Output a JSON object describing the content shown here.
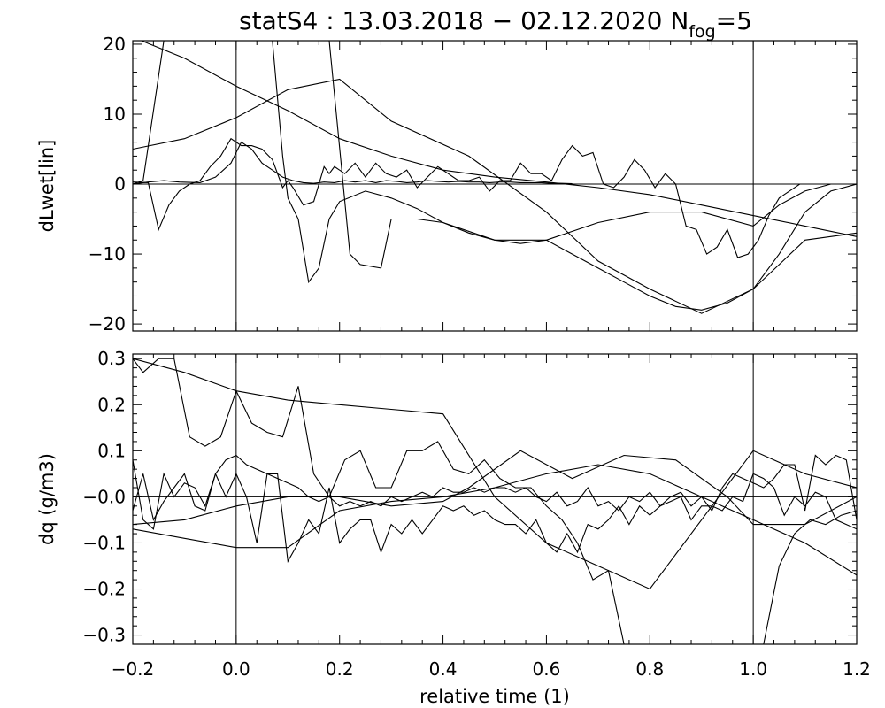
{
  "title": {
    "main": "statS4 : 13.03.2018 − 02.12.2020 N",
    "sub": "fog",
    "tail": "=5"
  },
  "chart_data": [
    {
      "type": "line",
      "ylabel": "dLwet[lin]",
      "xlim": [
        -0.2,
        1.2
      ],
      "ylim": [
        -21,
        20.5
      ],
      "xticks": [
        -0.2,
        0.0,
        0.2,
        0.4,
        0.6,
        0.8,
        1.0,
        1.2
      ],
      "yticks": [
        -20,
        -10,
        0,
        10,
        20
      ],
      "ytick_labels": [
        "−20",
        "−10",
        "0",
        "10",
        "20"
      ],
      "hline": 0,
      "vlines": [
        0.0,
        1.0
      ],
      "series": [
        {
          "x": [
            -0.2,
            -0.1,
            0.0,
            0.1,
            0.2,
            0.3,
            0.45,
            0.6,
            0.7,
            0.8,
            0.9,
            1.0,
            1.1,
            1.2
          ],
          "y": [
            5,
            6.5,
            9.5,
            13.5,
            15,
            9,
            4,
            -4,
            -11,
            -15,
            -18.5,
            -15,
            -8,
            -7
          ]
        },
        {
          "x": [
            -0.2,
            -0.1,
            0.0,
            0.1,
            0.2,
            0.3,
            0.4,
            0.5,
            0.6,
            0.7,
            0.8,
            0.9,
            1.0,
            1.1,
            1.2
          ],
          "y": [
            21,
            18,
            14,
            10.5,
            6.5,
            4,
            2,
            1,
            0.3,
            -0.5,
            -1.5,
            -3,
            -4.5,
            -6,
            -7.5
          ]
        },
        {
          "x": [
            -0.2,
            -0.17,
            -0.15,
            -0.13,
            -0.11,
            -0.09,
            -0.07,
            -0.05,
            -0.03,
            -0.01,
            0.01,
            0.03,
            0.05,
            0.07,
            0.09,
            0.1,
            0.11,
            0.13,
            0.15,
            0.17,
            0.18,
            0.19,
            0.21,
            0.23,
            0.25,
            0.27,
            0.29,
            0.31,
            0.33,
            0.35,
            0.37,
            0.39,
            0.41,
            0.43,
            0.45,
            0.47,
            0.49,
            0.51,
            0.53,
            0.55,
            0.57,
            0.59,
            0.61,
            0.63,
            0.65,
            0.67,
            0.69,
            0.71,
            0.73,
            0.75,
            0.77,
            0.79,
            0.81,
            0.83,
            0.85,
            0.87,
            0.89,
            0.91,
            0.93,
            0.95,
            0.97,
            0.99,
            1.01,
            1.03,
            1.05,
            1.07,
            1.09,
            1.11,
            1.13,
            1.15,
            1.2
          ],
          "y": [
            0.3,
            0.2,
            -6.5,
            -3,
            -1,
            0,
            0.5,
            2.5,
            4,
            6.5,
            5.5,
            5.5,
            5,
            3.5,
            -0.5,
            0.5,
            -0.5,
            -3,
            -2.5,
            2.5,
            1.5,
            2.5,
            1.5,
            3,
            1,
            3,
            1.5,
            1,
            2,
            -0.5,
            1,
            2.5,
            1.5,
            0.5,
            0.5,
            1,
            -1,
            0.5,
            0.5,
            3,
            1.5,
            1.5,
            0.5,
            3.5,
            5.5,
            4,
            4.5,
            0,
            -0.5,
            1,
            3.5,
            2,
            -0.5,
            1.5,
            0,
            -6,
            -6.5,
            -10,
            -9,
            -6.5,
            -10.5,
            -10,
            -8,
            -4.5,
            -2,
            -1,
            0,
            0,
            0,
            0,
            0
          ]
        },
        {
          "x": [
            -0.2,
            -0.17,
            -0.14,
            -0.11,
            -0.07,
            -0.04,
            -0.01,
            0.01,
            0.03,
            0.05,
            0.07,
            0.09,
            0.11,
            0.13,
            0.15,
            0.17,
            0.19,
            0.21,
            0.23,
            0.25,
            0.27,
            0.29,
            0.31,
            0.33,
            0.35,
            0.37,
            0.39,
            0.41,
            0.43,
            0.45,
            0.47,
            0.49,
            0.51,
            0.53,
            0.55,
            0.57,
            0.59,
            0.61,
            0.63,
            0.65
          ],
          "y": [
            0,
            0.3,
            0.5,
            0.3,
            0.2,
            1,
            3,
            6,
            5,
            3,
            2,
            1,
            0.5,
            0.2,
            0.1,
            0.3,
            0.2,
            0.5,
            0.3,
            0.5,
            0.2,
            0.5,
            0.4,
            0.2,
            0.3,
            0.5,
            0.4,
            0.3,
            0.4,
            0.3,
            0.3,
            0.2,
            0.3,
            0.3,
            0.2,
            0.2,
            0.2,
            0.1,
            0.1,
            0.05
          ]
        },
        {
          "x": [
            -0.2,
            -0.18,
            -0.14,
            -0.12,
            -0.1,
            0.07,
            0.09,
            0.12,
            0.15,
            0.18,
            0.22,
            0.24,
            0.28,
            0.3,
            0.35,
            0.4,
            0.5,
            0.6,
            0.7,
            0.8,
            0.9,
            1.0,
            1.05,
            1.1,
            1.15,
            1.2
          ],
          "y": [
            0,
            0.5,
            20.5,
            20.5,
            20.5,
            20.5,
            20.5,
            20.5,
            20.5,
            20.5,
            -10,
            -11.5,
            -12,
            -5,
            -5,
            -5.5,
            -8,
            -8,
            -5.5,
            -4,
            -4,
            -6,
            -3,
            -1,
            0,
            0
          ]
        },
        {
          "x": [
            0.07,
            0.09,
            0.1,
            0.12,
            0.14,
            0.16,
            0.18,
            0.2,
            0.25,
            0.3,
            0.35,
            0.4,
            0.45,
            0.5,
            0.55,
            0.6,
            0.65,
            0.7,
            0.75,
            0.8,
            0.85,
            0.9,
            0.95,
            1.0,
            1.05,
            1.1,
            1.15,
            1.2
          ],
          "y": [
            20.5,
            4,
            -2,
            -5,
            -14,
            -12,
            -5,
            -2.5,
            -1,
            -2,
            -3.5,
            -5.5,
            -7,
            -8,
            -8.5,
            -8,
            -10,
            -12,
            -14,
            -16,
            -17.5,
            -18,
            -17,
            -15,
            -10,
            -4,
            -1,
            0
          ]
        }
      ]
    },
    {
      "type": "line",
      "xlabel": "relative time (1)",
      "ylabel": "dq (g/m3)",
      "xlim": [
        -0.2,
        1.2
      ],
      "ylim": [
        -0.32,
        0.31
      ],
      "xticks": [
        -0.2,
        0.0,
        0.2,
        0.4,
        0.6,
        0.8,
        1.0,
        1.2
      ],
      "xtick_labels": [
        "−0.2",
        "0.0",
        "0.2",
        "0.4",
        "0.6",
        "0.8",
        "1.0",
        "1.2"
      ],
      "yticks": [
        -0.3,
        -0.2,
        -0.1,
        0.0,
        0.1,
        0.2,
        0.3
      ],
      "ytick_labels": [
        "−0.3",
        "−0.2",
        "−0.1",
        "−0.0",
        "0.1",
        "0.2",
        "0.3"
      ],
      "hline": 0,
      "vlines": [
        0.0,
        1.0
      ],
      "series": [
        {
          "x": [
            -0.2,
            -0.18,
            -0.15,
            -0.12,
            -0.09,
            -0.06,
            -0.03,
            0.0,
            0.03,
            0.06,
            0.09,
            0.12,
            0.15,
            0.18,
            0.21,
            0.24,
            0.27,
            0.3,
            0.33,
            0.36,
            0.39,
            0.42,
            0.45,
            0.48,
            0.51,
            0.54,
            0.57,
            0.6,
            0.63,
            0.66,
            0.69,
            0.72,
            0.75,
            0.78,
            0.81,
            0.84,
            0.87,
            0.9,
            0.93,
            0.96,
            0.99,
            1.02,
            1.05,
            1.08,
            1.11,
            1.14,
            1.17,
            1.2
          ],
          "y": [
            0.3,
            0.27,
            0.3,
            0.3,
            0.13,
            0.11,
            0.13,
            0.23,
            0.16,
            0.14,
            0.13,
            0.24,
            0.05,
            0.0,
            0.08,
            0.1,
            0.02,
            0.02,
            0.1,
            0.1,
            0.12,
            0.06,
            0.05,
            0.08,
            0.04,
            0.02,
            0.02,
            -0.02,
            -0.05,
            -0.1,
            -0.18,
            -0.16,
            -0.32,
            -0.32,
            -0.32,
            -0.32,
            -0.32,
            -0.32,
            -0.32,
            -0.32,
            -0.32,
            -0.32,
            -0.15,
            -0.08,
            -0.05,
            -0.06,
            -0.04,
            -0.03
          ]
        },
        {
          "x": [
            -0.2,
            -0.1,
            0.0,
            0.1,
            0.2,
            0.3,
            0.4,
            0.5,
            0.6,
            0.7,
            0.8,
            0.9,
            1.0,
            1.1,
            1.2
          ],
          "y": [
            0.3,
            0.27,
            0.23,
            0.21,
            0.2,
            0.19,
            0.18,
            0.0,
            -0.1,
            -0.15,
            -0.2,
            -0.05,
            0.1,
            0.05,
            0.02
          ]
        },
        {
          "x": [
            -0.2,
            -0.18,
            -0.16,
            -0.14,
            -0.12,
            -0.1,
            -0.08,
            -0.06,
            -0.04,
            -0.02,
            0.0,
            0.02,
            0.04,
            0.06,
            0.08,
            0.1,
            0.12,
            0.14,
            0.16,
            0.18,
            0.2,
            0.22,
            0.24,
            0.26,
            0.28,
            0.3,
            0.32,
            0.34,
            0.36,
            0.38,
            0.4,
            0.42,
            0.44,
            0.46,
            0.48,
            0.5,
            0.52,
            0.54,
            0.56,
            0.58,
            0.6,
            0.62,
            0.64,
            0.66,
            0.68,
            0.7,
            0.72,
            0.74,
            0.76,
            0.78,
            0.8,
            0.82,
            0.84,
            0.86,
            0.88,
            0.9,
            0.92,
            0.94,
            0.96,
            0.98,
            1.0,
            1.02,
            1.04,
            1.06,
            1.08,
            1.1,
            1.12,
            1.14,
            1.16,
            1.18,
            1.2
          ],
          "y": [
            0.08,
            -0.05,
            -0.07,
            0.05,
            0.0,
            0.03,
            0.02,
            -0.02,
            0.05,
            0.08,
            0.09,
            0.07,
            0.06,
            0.05,
            0.04,
            0.03,
            0.02,
            0.0,
            -0.01,
            0.0,
            -0.02,
            -0.01,
            -0.02,
            -0.01,
            -0.02,
            0.0,
            -0.01,
            0.0,
            0.01,
            0.0,
            0.02,
            0.01,
            0.01,
            0.02,
            0.01,
            0.02,
            0.02,
            0.01,
            0.02,
            0.0,
            -0.01,
            0.01,
            -0.02,
            -0.01,
            0.02,
            -0.02,
            -0.01,
            -0.03,
            0.0,
            -0.01,
            0.01,
            -0.02,
            0.0,
            0.01,
            -0.02,
            0.0,
            -0.03,
            0.02,
            0.05,
            0.04,
            0.03,
            0.02,
            0.04,
            0.07,
            0.07,
            -0.03,
            0.09,
            0.07,
            0.09,
            0.08,
            -0.05
          ]
        },
        {
          "x": [
            -0.2,
            -0.18,
            -0.16,
            -0.14,
            -0.12,
            -0.1,
            -0.08,
            -0.06,
            -0.04,
            -0.02,
            0.0,
            0.02,
            0.04,
            0.06,
            0.08,
            0.1,
            0.12,
            0.14,
            0.16,
            0.18,
            0.2,
            0.22,
            0.24,
            0.26,
            0.28,
            0.3,
            0.32,
            0.34,
            0.36,
            0.38,
            0.4,
            0.42,
            0.44,
            0.46,
            0.48,
            0.5,
            0.52,
            0.54,
            0.56,
            0.58,
            0.6,
            0.62,
            0.64,
            0.66,
            0.68,
            0.7,
            0.72,
            0.74,
            0.76,
            0.78,
            0.8,
            0.82,
            0.84,
            0.86,
            0.88,
            0.9,
            0.92,
            0.94,
            0.96,
            0.98,
            1.0,
            1.02,
            1.04,
            1.06,
            1.08,
            1.1,
            1.12,
            1.14,
            1.16,
            1.18,
            1.2
          ],
          "y": [
            -0.03,
            0.05,
            -0.05,
            -0.01,
            0.02,
            0.05,
            -0.02,
            -0.03,
            0.05,
            0.0,
            0.05,
            0.0,
            -0.1,
            0.05,
            0.05,
            -0.14,
            -0.1,
            -0.05,
            -0.08,
            0.02,
            -0.1,
            -0.07,
            -0.05,
            -0.05,
            -0.12,
            -0.06,
            -0.08,
            -0.05,
            -0.08,
            -0.05,
            -0.02,
            -0.03,
            -0.02,
            -0.04,
            -0.03,
            -0.05,
            -0.06,
            -0.06,
            -0.08,
            -0.05,
            -0.1,
            -0.12,
            -0.08,
            -0.12,
            -0.06,
            -0.07,
            -0.05,
            -0.02,
            -0.06,
            -0.02,
            -0.04,
            -0.02,
            -0.01,
            0.0,
            -0.05,
            -0.02,
            -0.02,
            -0.03,
            0.0,
            -0.01,
            0.05,
            0.04,
            0.02,
            -0.04,
            0.0,
            -0.02,
            0.01,
            0.0,
            -0.05,
            -0.06,
            -0.07
          ]
        },
        {
          "x": [
            -0.2,
            -0.1,
            0.0,
            0.1,
            0.2,
            0.3,
            0.4,
            0.5,
            0.6,
            0.7,
            0.8,
            0.9,
            1.0,
            1.1,
            1.2
          ],
          "y": [
            -0.07,
            -0.09,
            -0.11,
            -0.11,
            -0.03,
            -0.01,
            0.0,
            0.02,
            0.05,
            0.07,
            0.05,
            0.0,
            -0.05,
            -0.1,
            -0.17
          ]
        },
        {
          "x": [
            -0.2,
            -0.1,
            0.0,
            0.1,
            0.2,
            0.3,
            0.4,
            0.45,
            0.55,
            0.65,
            0.75,
            0.85,
            0.95,
            1.0,
            1.1,
            1.2
          ],
          "y": [
            -0.06,
            -0.05,
            -0.02,
            0.0,
            0.0,
            -0.02,
            -0.01,
            0.02,
            0.1,
            0.04,
            0.09,
            0.08,
            0.0,
            -0.06,
            -0.06,
            0.0
          ]
        }
      ]
    }
  ]
}
